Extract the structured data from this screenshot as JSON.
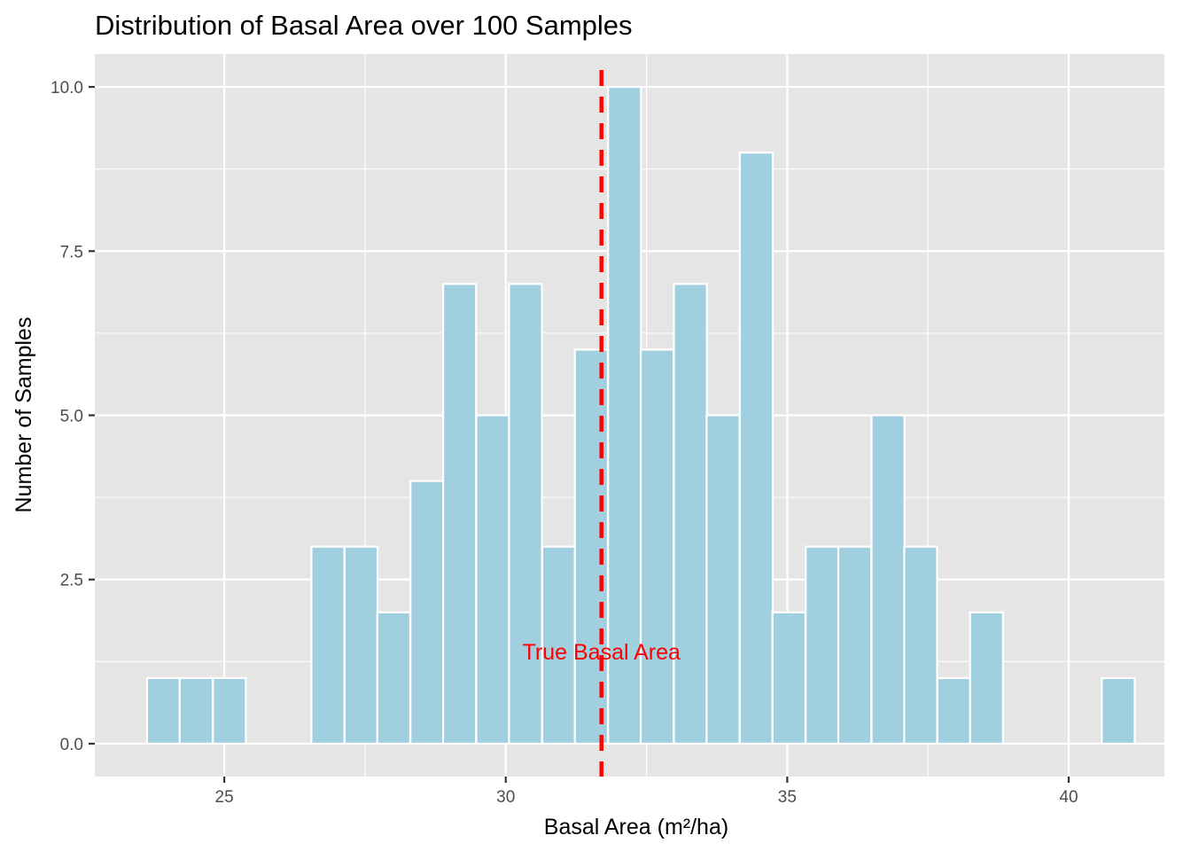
{
  "chart_data": {
    "type": "bar",
    "title": "Distribution of Basal Area over 100 Samples",
    "xlabel": "Basal Area (m²/ha)",
    "ylabel": "Number of Samples",
    "xlim": [
      22.7,
      41.7
    ],
    "ylim": [
      -0.5,
      10.5
    ],
    "x_ticks": [
      {
        "value": 25,
        "label": "25"
      },
      {
        "value": 30,
        "label": "30"
      },
      {
        "value": 35,
        "label": "35"
      },
      {
        "value": 40,
        "label": "40"
      }
    ],
    "y_ticks": [
      {
        "value": 0,
        "label": "0.0"
      },
      {
        "value": 2.5,
        "label": "2.5"
      },
      {
        "value": 5,
        "label": "5.0"
      },
      {
        "value": 7.5,
        "label": "7.5"
      },
      {
        "value": 10,
        "label": "10.0"
      }
    ],
    "bin_width": 0.585,
    "bin_centers": [
      23.92,
      24.5,
      25.09,
      25.67,
      26.26,
      26.84,
      27.43,
      28.01,
      28.6,
      29.18,
      29.77,
      30.35,
      30.94,
      31.52,
      32.11,
      32.69,
      33.28,
      33.86,
      34.45,
      35.03,
      35.62,
      36.2,
      36.79,
      37.37,
      37.96,
      38.54,
      39.13,
      39.71,
      40.3,
      40.88
    ],
    "counts": [
      1,
      1,
      1,
      0,
      0,
      3,
      3,
      2,
      4,
      7,
      5,
      7,
      3,
      6,
      10,
      6,
      7,
      5,
      9,
      2,
      3,
      3,
      5,
      3,
      1,
      2,
      0,
      0,
      0,
      1
    ],
    "reference_line": {
      "x": 31.7,
      "label": "True Basal Area",
      "color": "#ff0000",
      "style": "dashed"
    },
    "annotation_y": 1.4,
    "colors": {
      "bar_fill": "#a0cfe0",
      "bar_outline": "#ffffff",
      "panel_background": "#e5e5e5",
      "grid": "#ffffff"
    },
    "grid": true,
    "legend": "none"
  }
}
